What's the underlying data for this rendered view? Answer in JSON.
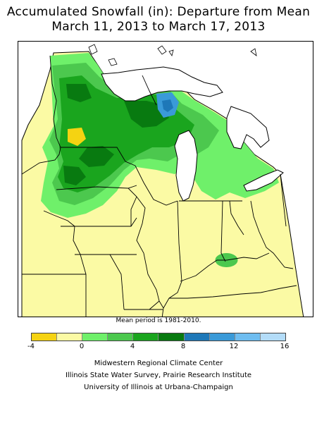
{
  "title": {
    "line1": "Accumulated Snowfall (in): Departure from Mean",
    "line2": "March 11, 2013 to March 17, 2013"
  },
  "footnote": "Mean period is 1981-2010.",
  "legend": {
    "ticks": [
      "-4",
      "0",
      "4",
      "8",
      "12",
      "16"
    ],
    "bins": [
      {
        "range": "-4 to -2",
        "color": "#f5d312"
      },
      {
        "range": "-2 to 0",
        "color": "#fbfaa4"
      },
      {
        "range": "0 to 2",
        "color": "#6ff06a"
      },
      {
        "range": "2 to 4",
        "color": "#4cc84e"
      },
      {
        "range": "4 to 6",
        "color": "#1aa51e"
      },
      {
        "range": "6 to 8",
        "color": "#087a10"
      },
      {
        "range": "8 to 10",
        "color": "#1e78b8"
      },
      {
        "range": "10 to 12",
        "color": "#3a9ad8"
      },
      {
        "range": "12 to 14",
        "color": "#6ebdf0"
      },
      {
        "range": "14 to 16",
        "color": "#b3dcf8"
      }
    ]
  },
  "credits": {
    "line1": "Midwestern Regional Climate Center",
    "line2": "Illinois State Water Survey, Prairie Research Institute",
    "line3": "University of Illinois at Urbana-Champaign"
  },
  "colors": {
    "background": "#ffffff",
    "lakes": "#ffffff",
    "neutral": "#fbfaa4"
  }
}
